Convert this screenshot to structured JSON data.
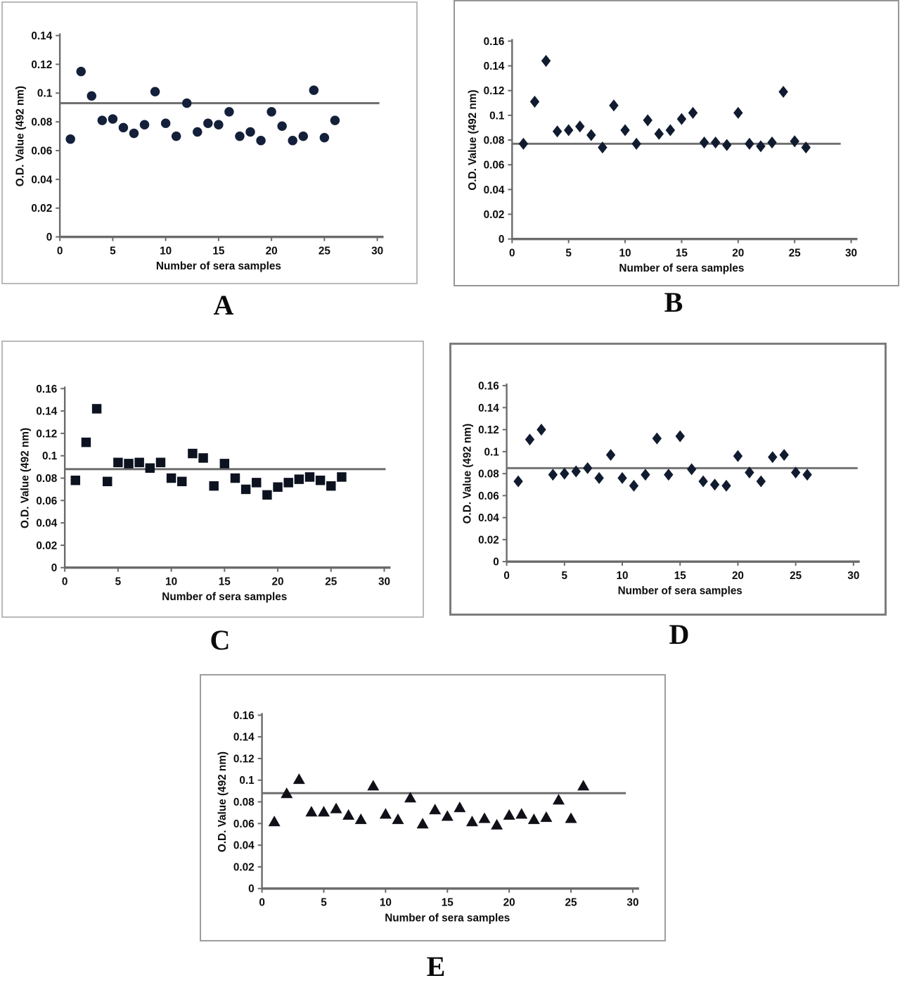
{
  "figure": {
    "description": "Five scatter plots (A-E) of ELISA O.D. readings of sera samples with cut-off lines",
    "x_axis_title": "Number of sera samples",
    "y_axis_title": "O.D. Value (492 nm)"
  },
  "chart_data": [
    {
      "panel_label": "A",
      "type": "scatter",
      "marker": "circle",
      "marker_color": "#14203a",
      "xlabel": "Number of sera samples",
      "ylabel": "O.D. Value (492 nm)",
      "xlim": [
        0,
        30
      ],
      "ylim": [
        0,
        0.14
      ],
      "xticks": [
        0,
        5,
        10,
        15,
        20,
        25,
        30
      ],
      "ytick_labels": [
        "0",
        "0.02",
        "0.04",
        "0.06",
        "0.08",
        "0.1",
        "0.12",
        "0.14"
      ],
      "cutoff_line": 0.093,
      "x": [
        1,
        2,
        3,
        4,
        5,
        6,
        7,
        8,
        9,
        10,
        11,
        12,
        13,
        14,
        15,
        16,
        17,
        18,
        19,
        20,
        21,
        22,
        23,
        24,
        25,
        26
      ],
      "y": [
        0.068,
        0.115,
        0.098,
        0.081,
        0.082,
        0.076,
        0.072,
        0.078,
        0.101,
        0.079,
        0.07,
        0.093,
        0.073,
        0.079,
        0.078,
        0.087,
        0.07,
        0.073,
        0.067,
        0.087,
        0.077,
        0.067,
        0.07,
        0.102,
        0.069,
        0.081
      ]
    },
    {
      "panel_label": "B",
      "type": "scatter",
      "marker": "diamond",
      "marker_color": "#111b30",
      "xlabel": "Number of sera samples",
      "ylabel": "O.D. Value (492 nm)",
      "xlim": [
        0,
        30
      ],
      "ylim": [
        0,
        0.16
      ],
      "xticks": [
        0,
        5,
        10,
        15,
        20,
        25,
        30
      ],
      "ytick_labels": [
        "0",
        "0.02",
        "0.04",
        "0.06",
        "0.08",
        "0.1",
        "0.12",
        "0.14",
        "0.16"
      ],
      "cutoff_line": 0.077,
      "x": [
        1,
        2,
        3,
        4,
        5,
        6,
        7,
        8,
        9,
        10,
        11,
        12,
        13,
        14,
        15,
        16,
        17,
        18,
        19,
        20,
        21,
        22,
        23,
        24,
        25,
        26
      ],
      "y": [
        0.077,
        0.111,
        0.144,
        0.087,
        0.088,
        0.091,
        0.084,
        0.074,
        0.108,
        0.088,
        0.077,
        0.096,
        0.085,
        0.088,
        0.097,
        0.102,
        0.078,
        0.078,
        0.076,
        0.102,
        0.077,
        0.075,
        0.078,
        0.119,
        0.079,
        0.074
      ]
    },
    {
      "panel_label": "C",
      "type": "scatter",
      "marker": "square",
      "marker_color": "#0d1220",
      "xlabel": "Number of sera samples",
      "ylabel": "O.D. Value (492 nm)",
      "xlim": [
        0,
        30
      ],
      "ylim": [
        0,
        0.16
      ],
      "xticks": [
        0,
        5,
        10,
        15,
        20,
        25,
        30
      ],
      "ytick_labels": [
        "0",
        "0.02",
        "0.04",
        "0.06",
        "0.08",
        "0.1",
        "0.12",
        "0.14",
        "0.16"
      ],
      "cutoff_line": 0.088,
      "x": [
        1,
        2,
        3,
        4,
        5,
        6,
        7,
        8,
        9,
        10,
        11,
        12,
        13,
        14,
        15,
        16,
        17,
        18,
        19,
        20,
        21,
        22,
        23,
        24,
        25,
        26
      ],
      "y": [
        0.078,
        0.112,
        0.142,
        0.077,
        0.094,
        0.093,
        0.094,
        0.089,
        0.094,
        0.08,
        0.077,
        0.102,
        0.098,
        0.073,
        0.093,
        0.08,
        0.07,
        0.076,
        0.065,
        0.072,
        0.076,
        0.079,
        0.081,
        0.078,
        0.073,
        0.081
      ]
    },
    {
      "panel_label": "D",
      "type": "scatter",
      "marker": "diamond",
      "marker_color": "#111b30",
      "xlabel": "Number of sera samples",
      "ylabel": "O.D. Value (492 nm)",
      "xlim": [
        0,
        30
      ],
      "ylim": [
        0,
        0.16
      ],
      "xticks": [
        0,
        5,
        10,
        15,
        20,
        25,
        30
      ],
      "ytick_labels": [
        "0",
        "0.02",
        "0.04",
        "0.06",
        "0.08",
        "0.1",
        "0.12",
        "0.14",
        "0.16"
      ],
      "cutoff_line": 0.085,
      "x": [
        1,
        2,
        3,
        4,
        5,
        6,
        7,
        8,
        9,
        10,
        11,
        12,
        13,
        14,
        15,
        16,
        17,
        18,
        19,
        20,
        21,
        22,
        23,
        24,
        25,
        26
      ],
      "y": [
        0.073,
        0.111,
        0.12,
        0.079,
        0.08,
        0.082,
        0.085,
        0.076,
        0.097,
        0.076,
        0.069,
        0.079,
        0.112,
        0.079,
        0.114,
        0.084,
        0.073,
        0.07,
        0.069,
        0.096,
        0.081,
        0.073,
        0.095,
        0.097,
        0.081,
        0.079
      ]
    },
    {
      "panel_label": "E",
      "type": "scatter",
      "marker": "triangle",
      "marker_color": "#101018",
      "xlabel": "Number of sera samples",
      "ylabel": "O.D. Value (492 nm)",
      "xlim": [
        0,
        30
      ],
      "ylim": [
        0,
        0.16
      ],
      "xticks": [
        0,
        5,
        10,
        15,
        20,
        25,
        30
      ],
      "ytick_labels": [
        "0",
        "0.02",
        "0.04",
        "0.06",
        "0.08",
        "0.1",
        "0.12",
        "0.14",
        "0.16"
      ],
      "cutoff_line": 0.088,
      "x": [
        1,
        2,
        3,
        4,
        5,
        6,
        7,
        8,
        9,
        10,
        11,
        12,
        13,
        14,
        15,
        16,
        17,
        18,
        19,
        20,
        21,
        22,
        23,
        24,
        25,
        26
      ],
      "y": [
        0.062,
        0.088,
        0.101,
        0.071,
        0.071,
        0.074,
        0.068,
        0.064,
        0.095,
        0.069,
        0.064,
        0.084,
        0.06,
        0.073,
        0.067,
        0.075,
        0.062,
        0.065,
        0.059,
        0.068,
        0.069,
        0.064,
        0.066,
        0.082,
        0.065,
        0.095
      ]
    }
  ]
}
